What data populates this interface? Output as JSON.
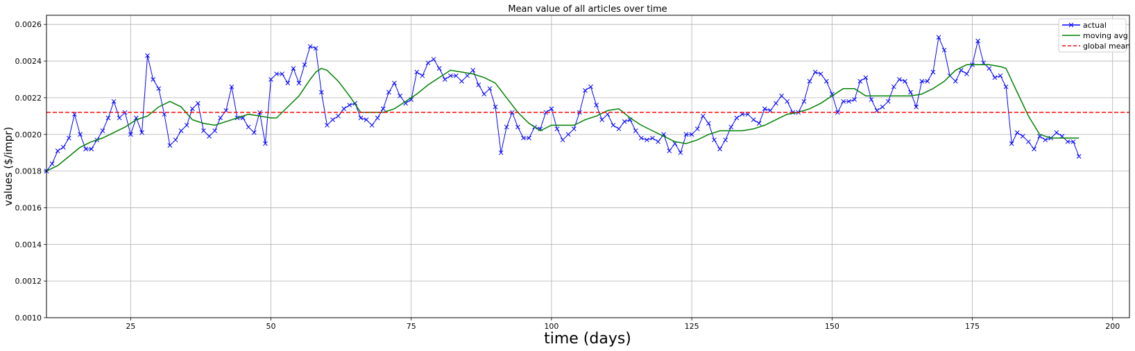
{
  "chart_data": {
    "type": "line",
    "title": "Mean value of all articles over time",
    "xlabel": "time (days)",
    "ylabel": "values ($/impr)",
    "xlim": [
      10,
      203
    ],
    "ylim": [
      0.001,
      0.00265
    ],
    "xticks": [
      25,
      50,
      75,
      100,
      125,
      150,
      175,
      200
    ],
    "yticks": [
      0.001,
      0.0012,
      0.0014,
      0.0016,
      0.0018,
      0.002,
      0.0022,
      0.0024,
      0.0026
    ],
    "xtick_labels": [
      "25",
      "50",
      "75",
      "100",
      "125",
      "150",
      "175",
      "200"
    ],
    "ytick_labels": [
      "0.0010",
      "0.0012",
      "0.0014",
      "0.0016",
      "0.0018",
      "0.0020",
      "0.0022",
      "0.0024",
      "0.0026"
    ],
    "grid": true,
    "legend_position": "top-right",
    "series": [
      {
        "name": "actual",
        "color": "#0000ff",
        "style": "solid",
        "marker": "x",
        "x": [
          10,
          11,
          12,
          13,
          14,
          15,
          16,
          17,
          18,
          19,
          20,
          21,
          22,
          23,
          24,
          25,
          26,
          27,
          28,
          29,
          30,
          31,
          32,
          33,
          34,
          35,
          36,
          37,
          38,
          39,
          40,
          41,
          42,
          43,
          44,
          45,
          46,
          47,
          48,
          49,
          50,
          51,
          52,
          53,
          54,
          55,
          56,
          57,
          58,
          59,
          60,
          61,
          62,
          63,
          64,
          65,
          66,
          67,
          68,
          69,
          70,
          71,
          72,
          73,
          74,
          75,
          76,
          77,
          78,
          79,
          80,
          81,
          82,
          83,
          84,
          85,
          86,
          87,
          88,
          89,
          90,
          91,
          92,
          93,
          94,
          95,
          96,
          97,
          98,
          99,
          100,
          101,
          102,
          103,
          104,
          105,
          106,
          107,
          108,
          109,
          110,
          111,
          112,
          113,
          114,
          115,
          116,
          117,
          118,
          119,
          120,
          121,
          122,
          123,
          124,
          125,
          126,
          127,
          128,
          129,
          130,
          131,
          132,
          133,
          134,
          135,
          136,
          137,
          138,
          139,
          140,
          141,
          142,
          143,
          144,
          145,
          146,
          147,
          148,
          149,
          150,
          151,
          152,
          153,
          154,
          155,
          156,
          157,
          158,
          159,
          160,
          161,
          162,
          163,
          164,
          165,
          166,
          167,
          168,
          169,
          170,
          171,
          172,
          173,
          174,
          175,
          176,
          177,
          178,
          179,
          180,
          181,
          182,
          183,
          184,
          185,
          186,
          187,
          188,
          189,
          190,
          191,
          192,
          193,
          194
        ],
        "y": [
          0.0018,
          0.00184,
          0.00191,
          0.00193,
          0.00198,
          0.00211,
          0.002,
          0.00192,
          0.00192,
          0.00197,
          0.00202,
          0.00209,
          0.00218,
          0.00209,
          0.00212,
          0.002,
          0.00209,
          0.00201,
          0.00243,
          0.0023,
          0.00225,
          0.00211,
          0.00194,
          0.00197,
          0.00202,
          0.00205,
          0.00214,
          0.00217,
          0.00202,
          0.00199,
          0.00202,
          0.00209,
          0.00213,
          0.00226,
          0.00209,
          0.00209,
          0.00204,
          0.00201,
          0.00212,
          0.00195,
          0.0023,
          0.00233,
          0.00233,
          0.00228,
          0.00236,
          0.00228,
          0.00238,
          0.00248,
          0.00247,
          0.00223,
          0.00205,
          0.00208,
          0.0021,
          0.00214,
          0.00216,
          0.00217,
          0.00209,
          0.00208,
          0.00205,
          0.00209,
          0.00214,
          0.00223,
          0.00228,
          0.00221,
          0.00217,
          0.00219,
          0.00234,
          0.00232,
          0.00239,
          0.00241,
          0.00236,
          0.0023,
          0.00232,
          0.00232,
          0.00229,
          0.00232,
          0.00235,
          0.00227,
          0.00222,
          0.00225,
          0.00215,
          0.0019,
          0.00204,
          0.00212,
          0.00204,
          0.00198,
          0.00198,
          0.00204,
          0.00203,
          0.00212,
          0.00214,
          0.00203,
          0.00197,
          0.002,
          0.00203,
          0.00212,
          0.00224,
          0.00226,
          0.00216,
          0.00208,
          0.00211,
          0.00205,
          0.00203,
          0.00207,
          0.00208,
          0.00202,
          0.00198,
          0.00197,
          0.00198,
          0.00196,
          0.002,
          0.00191,
          0.00195,
          0.0019,
          0.002,
          0.002,
          0.00203,
          0.0021,
          0.00206,
          0.00197,
          0.00192,
          0.00197,
          0.00204,
          0.00209,
          0.00211,
          0.00211,
          0.00208,
          0.00206,
          0.00214,
          0.00213,
          0.00217,
          0.00221,
          0.00218,
          0.00212,
          0.00212,
          0.00218,
          0.00229,
          0.00234,
          0.00233,
          0.00229,
          0.00222,
          0.00212,
          0.00218,
          0.00218,
          0.00219,
          0.00229,
          0.00231,
          0.00219,
          0.00213,
          0.00215,
          0.00218,
          0.00226,
          0.0023,
          0.00229,
          0.00223,
          0.00215,
          0.00229,
          0.00229,
          0.00234,
          0.00253,
          0.00246,
          0.00232,
          0.00229,
          0.00235,
          0.00233,
          0.00238,
          0.00251,
          0.00239,
          0.00236,
          0.00231,
          0.00232,
          0.00226,
          0.00195,
          0.00201,
          0.00199,
          0.00196,
          0.00192,
          0.00199,
          0.00197,
          0.00198,
          0.00201,
          0.00199,
          0.00196,
          0.00196,
          0.00188
        ]
      },
      {
        "name": "moving avg",
        "color": "#008000",
        "style": "solid",
        "marker": "none",
        "x": [
          10,
          12,
          14,
          16,
          18,
          20,
          22,
          24,
          26,
          28,
          30,
          32,
          34,
          36,
          38,
          40,
          42,
          44,
          46,
          48,
          50,
          51,
          53,
          55,
          57,
          58,
          59,
          60,
          62,
          64,
          66,
          68,
          70,
          72,
          74,
          76,
          78,
          80,
          82,
          84,
          86,
          88,
          90,
          92,
          94,
          96,
          98,
          100,
          102,
          104,
          106,
          108,
          110,
          112,
          114,
          116,
          118,
          120,
          122,
          124,
          126,
          128,
          130,
          132,
          134,
          136,
          138,
          140,
          142,
          144,
          146,
          148,
          150,
          152,
          154,
          156,
          158,
          160,
          162,
          164,
          166,
          168,
          170,
          172,
          174,
          176,
          178,
          180,
          181,
          183,
          185,
          187,
          189,
          191,
          193,
          194
        ],
        "y": [
          0.0018,
          0.00183,
          0.00188,
          0.00193,
          0.00196,
          0.00198,
          0.00201,
          0.00204,
          0.00208,
          0.0021,
          0.00215,
          0.00218,
          0.00215,
          0.00208,
          0.00206,
          0.00205,
          0.00207,
          0.00209,
          0.00211,
          0.0021,
          0.00209,
          0.00209,
          0.00215,
          0.00221,
          0.0023,
          0.00234,
          0.00236,
          0.00235,
          0.00229,
          0.00221,
          0.00212,
          0.00212,
          0.00212,
          0.00214,
          0.00218,
          0.00222,
          0.00227,
          0.00231,
          0.00235,
          0.00234,
          0.00233,
          0.00231,
          0.00228,
          0.0022,
          0.00212,
          0.00206,
          0.00202,
          0.00205,
          0.00205,
          0.00205,
          0.00208,
          0.0021,
          0.00213,
          0.00214,
          0.00209,
          0.00205,
          0.00202,
          0.00199,
          0.00196,
          0.00195,
          0.00197,
          0.002,
          0.00202,
          0.00202,
          0.00202,
          0.00203,
          0.00205,
          0.00208,
          0.00211,
          0.00212,
          0.00214,
          0.00217,
          0.00221,
          0.00225,
          0.00225,
          0.00221,
          0.00221,
          0.00221,
          0.00221,
          0.00221,
          0.00222,
          0.00225,
          0.00229,
          0.00235,
          0.00238,
          0.00238,
          0.00238,
          0.00237,
          0.00236,
          0.00223,
          0.0021,
          0.002,
          0.00198,
          0.00198,
          0.00198,
          0.00198
        ]
      },
      {
        "name": "global mean",
        "color": "#ff0000",
        "style": "dashed",
        "marker": "none",
        "x": [
          10,
          203
        ],
        "y": [
          0.00212,
          0.00212
        ]
      }
    ]
  }
}
